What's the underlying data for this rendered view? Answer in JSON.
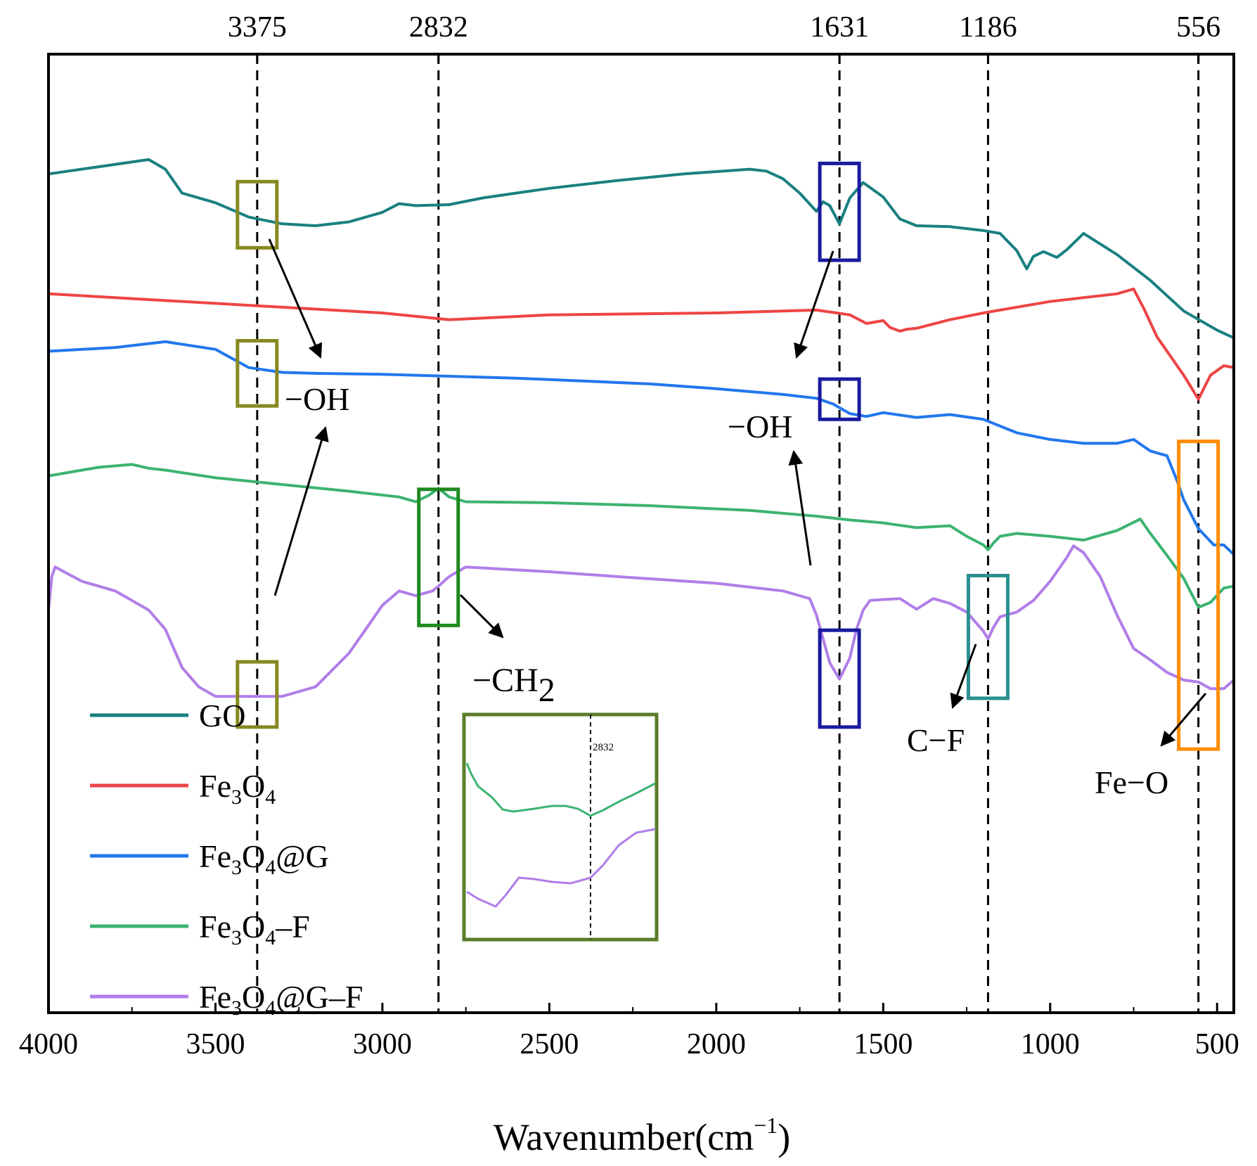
{
  "chart_data": {
    "type": "line",
    "title": "",
    "xlabel": "Wavenumber(cm",
    "xlabel_sup": "−1",
    "xlabel_close": ")",
    "ylabel": "",
    "xlim": [
      4000,
      450
    ],
    "ylim": [
      0,
      100
    ],
    "grid": false,
    "x_ticks": [
      4000,
      3500,
      3000,
      2500,
      2000,
      1500,
      1000,
      500
    ],
    "x_tick_labels": [
      "4000",
      "3500",
      "3000",
      "2500",
      "2000",
      "1500",
      "1000",
      "500"
    ],
    "reference_lines": [
      {
        "label": "3375",
        "x": 3375
      },
      {
        "label": "2832",
        "x": 2832
      },
      {
        "label": "1631",
        "x": 1631
      },
      {
        "label": "1186",
        "x": 1186
      },
      {
        "label": "556",
        "x": 556
      }
    ],
    "series": [
      {
        "name": "GO",
        "color": "#1a8080",
        "x": [
          4000,
          3700,
          3650,
          3600,
          3500,
          3400,
          3300,
          3200,
          3100,
          3000,
          2950,
          2900,
          2800,
          2700,
          2500,
          2300,
          2100,
          1900,
          1850,
          1800,
          1750,
          1700,
          1680,
          1660,
          1631,
          1600,
          1560,
          1500,
          1450,
          1400,
          1300,
          1250,
          1200,
          1150,
          1100,
          1070,
          1050,
          1020,
          980,
          950,
          900,
          800,
          700,
          600,
          500,
          450
        ],
        "y": [
          87.5,
          89,
          88,
          85.5,
          84.5,
          83,
          82.3,
          82.1,
          82.5,
          83.5,
          84.4,
          84.2,
          84.3,
          85,
          86,
          86.8,
          87.5,
          88,
          87.8,
          87,
          85.5,
          83.6,
          84.6,
          84.2,
          82.3,
          85,
          86.6,
          85.1,
          82.8,
          82.1,
          82,
          81.8,
          81.6,
          81.3,
          79.5,
          77.6,
          78.9,
          79.4,
          78.8,
          79.6,
          81.3,
          79.1,
          76.4,
          73.2,
          71.2,
          70.4
        ]
      },
      {
        "name": "Fe₃O₄",
        "color": "#ee4444",
        "x": [
          4000,
          3500,
          3000,
          2800,
          2500,
          2000,
          1700,
          1600,
          1550,
          1500,
          1480,
          1450,
          1430,
          1400,
          1300,
          1200,
          1100,
          1000,
          900,
          800,
          750,
          720,
          700,
          680,
          660,
          640,
          600,
          556,
          520,
          480,
          450
        ],
        "y": [
          75,
          74,
          73,
          72.3,
          72.8,
          73,
          73.3,
          72.8,
          71.9,
          72.2,
          71.5,
          71.1,
          71.3,
          71.4,
          72.3,
          73,
          73.6,
          74.2,
          74.6,
          75,
          75.5,
          73.5,
          72,
          70.5,
          69.5,
          68.5,
          66.5,
          64,
          66.5,
          67.5,
          67.3
        ]
      },
      {
        "name": "Fe₃O₄@G",
        "color": "#2277ee",
        "x": [
          4000,
          3800,
          3650,
          3500,
          3400,
          3300,
          3200,
          3000,
          2800,
          2600,
          2400,
          2200,
          2000,
          1800,
          1700,
          1650,
          1600,
          1550,
          1500,
          1400,
          1300,
          1200,
          1100,
          1000,
          900,
          800,
          750,
          700,
          650,
          620,
          600,
          556,
          510,
          480,
          450
        ],
        "y": [
          69,
          69.4,
          70,
          69.2,
          67.3,
          66.8,
          66.7,
          66.6,
          66.4,
          66.2,
          65.9,
          65.6,
          65.1,
          64.5,
          64.1,
          63.5,
          62.5,
          62.2,
          62.6,
          62.1,
          62.4,
          61.9,
          60.5,
          59.8,
          59.4,
          59.4,
          59.8,
          58.6,
          58.1,
          55.5,
          53.5,
          50.5,
          48.8,
          48.8,
          47.8
        ]
      },
      {
        "name": "Fe₃O₄–F",
        "color": "#3cb371",
        "x": [
          4000,
          3850,
          3750,
          3700,
          3650,
          3500,
          3300,
          3100,
          2950,
          2900,
          2860,
          2832,
          2800,
          2750,
          2500,
          2200,
          1900,
          1700,
          1600,
          1500,
          1400,
          1300,
          1250,
          1200,
          1186,
          1170,
          1150,
          1100,
          1000,
          900,
          800,
          730,
          700,
          650,
          600,
          556,
          520,
          480,
          450
        ],
        "y": [
          56,
          56.9,
          57.2,
          56.8,
          56.6,
          55.8,
          55.1,
          54.4,
          53.8,
          53.3,
          54,
          54.7,
          53.8,
          53.3,
          53.2,
          52.9,
          52.4,
          51.8,
          51.4,
          51.1,
          50.6,
          50.8,
          49.7,
          48.8,
          48.3,
          49,
          49.7,
          50,
          49.7,
          49.3,
          50.3,
          51.5,
          50,
          47.7,
          45.3,
          42.3,
          42.8,
          44.3,
          44.5
        ]
      },
      {
        "name": "Fe₃O₄@G–F",
        "color": "#b07ee8",
        "x": [
          4000,
          3990,
          3980,
          3900,
          3800,
          3700,
          3650,
          3600,
          3550,
          3500,
          3400,
          3300,
          3200,
          3100,
          3050,
          3000,
          2950,
          2900,
          2850,
          2832,
          2800,
          2750,
          2500,
          2300,
          2000,
          1800,
          1720,
          1700,
          1680,
          1660,
          1631,
          1600,
          1580,
          1560,
          1540,
          1500,
          1450,
          1400,
          1350,
          1300,
          1250,
          1200,
          1186,
          1170,
          1150,
          1100,
          1050,
          1000,
          950,
          930,
          900,
          850,
          800,
          750,
          700,
          650,
          600,
          556,
          520,
          480,
          450
        ],
        "y": [
          42,
          45.5,
          46.5,
          45,
          44,
          42,
          40,
          36,
          34,
          33,
          33,
          33,
          34,
          37.5,
          40,
          42.5,
          44,
          43.5,
          44,
          44.5,
          45.5,
          46.5,
          46,
          45.5,
          44.8,
          44,
          43.2,
          41.5,
          39,
          36.5,
          34.8,
          37,
          40,
          42,
          43,
          43.1,
          43.2,
          42.1,
          43.2,
          42.7,
          41.8,
          39.8,
          39,
          40.2,
          41.3,
          41.8,
          43,
          45,
          47.5,
          48.7,
          48,
          45.5,
          41.5,
          38,
          36.8,
          35.5,
          34.7,
          34.5,
          33.8,
          33.8,
          34.7
        ]
      }
    ],
    "annotations": [
      {
        "type": "box",
        "x": 3375,
        "y_range": [
          79.8,
          86.7
        ],
        "color": "#888822"
      },
      {
        "type": "box",
        "x": 3375,
        "y_range": [
          63.3,
          70.1
        ],
        "color": "#888822"
      },
      {
        "type": "box",
        "x": 3375,
        "y_range": [
          29.8,
          36.6
        ],
        "color": "#888822"
      },
      {
        "type": "box",
        "x": 2832,
        "y_range": [
          40.4,
          54.6
        ],
        "color": "#1f8a1f"
      },
      {
        "type": "box",
        "x": 1631,
        "y_range": [
          78.5,
          88.6
        ],
        "color": "#1a1aa0"
      },
      {
        "type": "box",
        "x": 1631,
        "y_range": [
          61.9,
          66.1
        ],
        "color": "#1a1aa0"
      },
      {
        "type": "box",
        "x": 1631,
        "y_range": [
          29.8,
          39.9
        ],
        "color": "#1a1aa0"
      },
      {
        "type": "box",
        "x": 1186,
        "y_range": [
          32.8,
          45.6
        ],
        "color": "#2a9090"
      },
      {
        "type": "box",
        "x": 556,
        "y_range": [
          27.5,
          59.6
        ],
        "color": "#ff8c00"
      }
    ],
    "labels": [
      {
        "id": "oh_left",
        "text": "−OH"
      },
      {
        "id": "oh_right",
        "text": "−OH"
      },
      {
        "id": "ch2",
        "text": "−CH"
      },
      {
        "id": "ch2_sub",
        "text": "2"
      },
      {
        "id": "cf",
        "text": "C−F"
      },
      {
        "id": "feo",
        "text": "Fe−O"
      }
    ],
    "inset": {
      "tick_label": "2832",
      "series": [
        {
          "name": "Fe₃O₄–F",
          "color": "#3cb371"
        },
        {
          "name": "Fe₃O₄@G–F",
          "color": "#b07ee8"
        }
      ]
    },
    "legend": {
      "position": "bottom-left",
      "entries": [
        {
          "base": "GO",
          "parts": [
            [
              "GO",
              ""
            ]
          ]
        },
        {
          "base": "Fe3O4",
          "parts": [
            [
              "Fe",
              ""
            ],
            [
              "3",
              "sub"
            ],
            [
              "O",
              ""
            ],
            [
              "4",
              "sub"
            ]
          ]
        },
        {
          "base": "Fe3O4@G",
          "parts": [
            [
              "Fe",
              ""
            ],
            [
              "3",
              "sub"
            ],
            [
              "O",
              ""
            ],
            [
              "4",
              "sub"
            ],
            [
              "@G",
              ""
            ]
          ]
        },
        {
          "base": "Fe3O4-F",
          "parts": [
            [
              "Fe",
              ""
            ],
            [
              "3",
              "sub"
            ],
            [
              "O",
              ""
            ],
            [
              "4",
              "sub"
            ],
            [
              "–F",
              ""
            ]
          ]
        },
        {
          "base": "Fe3O4@G-F",
          "parts": [
            [
              "Fe",
              ""
            ],
            [
              "3",
              "sub"
            ],
            [
              "O",
              ""
            ],
            [
              "4",
              "sub"
            ],
            [
              "@G–F",
              ""
            ]
          ]
        }
      ]
    }
  }
}
